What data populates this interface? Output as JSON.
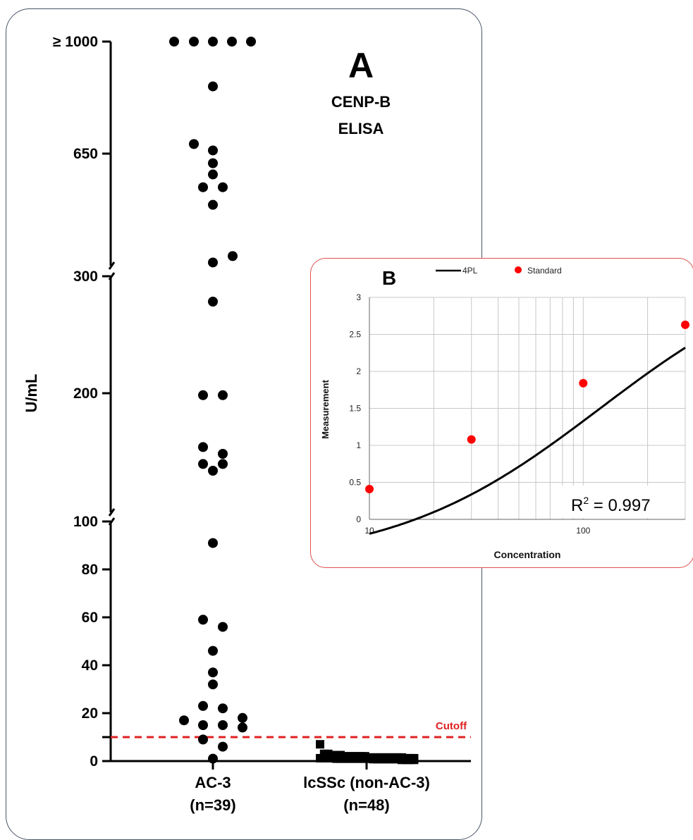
{
  "colors": {
    "dots": "#000000",
    "cutoff": "#e02020",
    "standard": "#ff0000",
    "curve": "#000000",
    "panelB_border": "#e05050",
    "panelA_border": "#4a5568"
  },
  "chart_data": [
    {
      "panel": "A",
      "type": "scatter",
      "panel_letter": "A",
      "title_lines": [
        "CENP-B",
        "ELISA"
      ],
      "ylabel": "U/mL",
      "yaxis_segments": [
        {
          "range": [
            0,
            100
          ],
          "ticks": [
            0,
            20,
            40,
            60,
            80,
            100
          ]
        },
        {
          "range": [
            100,
            300
          ],
          "ticks": [
            200,
            300
          ]
        },
        {
          "range": [
            300,
            1000
          ],
          "ticks": [
            650,
            1000
          ]
        }
      ],
      "y_tick_labels": [
        "0",
        "20",
        "40",
        "60",
        "80",
        "100",
        "200",
        "300",
        "650",
        "≥ 1000"
      ],
      "cutoff": {
        "value": 10,
        "label": "Cutoff"
      },
      "categories": [
        {
          "label": "AC-3",
          "n_label": "(n=39)"
        },
        {
          "label": "lcSSc (non-AC-3)",
          "n_label": "(n=48)"
        }
      ],
      "series": [
        {
          "category": "AC-3",
          "marker": "circle",
          "values": [
            1000,
            1000,
            1000,
            1000,
            1000,
            860,
            680,
            660,
            620,
            585,
            545,
            545,
            490,
            330,
            310,
            265,
            182,
            182,
            136,
            130,
            121,
            121,
            115,
            91,
            59,
            56,
            46,
            37,
            32,
            23,
            22,
            18,
            17,
            15,
            15,
            14,
            9,
            6,
            1
          ]
        },
        {
          "category": "lcSSc (non-AC-3)",
          "marker": "square",
          "values": [
            7,
            3,
            3,
            2.5,
            2.5,
            2.5,
            2,
            2,
            2,
            2,
            2,
            2,
            1.5,
            1.5,
            1.5,
            1.5,
            1.5,
            1.5,
            1.5,
            1.5,
            1.5,
            1.2,
            1.2,
            1.2,
            1.2,
            1.2,
            1.2,
            1.2,
            1,
            1,
            1,
            1,
            1,
            1,
            1,
            1,
            1,
            0.8,
            0.8,
            0.8,
            0.8,
            0.8,
            0.8,
            0.8,
            0.5,
            0.5,
            0.5,
            0.5
          ]
        }
      ]
    },
    {
      "panel": "B",
      "type": "line",
      "panel_letter": "B",
      "xlabel": "Concentration",
      "ylabel": "Measurement",
      "xscale": "log",
      "xlim": [
        10,
        300
      ],
      "ylim": [
        0,
        3
      ],
      "x_tick_labels": [
        "10",
        "100"
      ],
      "y_ticks": [
        0,
        0.5,
        1,
        1.5,
        2,
        2.5,
        3
      ],
      "y_tick_labels": [
        "0",
        "0.5",
        "1",
        "1.5",
        "2",
        "2.5",
        "3"
      ],
      "grid": true,
      "legend": [
        {
          "label": "4PL",
          "kind": "line"
        },
        {
          "label": "Standard",
          "kind": "point"
        }
      ],
      "annotation": {
        "text_base": "R",
        "text_sup": "2",
        "text_rest": " = 0.997"
      },
      "standard_points": {
        "x": [
          10,
          30,
          100,
          300
        ],
        "y": [
          0.41,
          1.08,
          1.84,
          2.63
        ]
      },
      "curve_4pl": {
        "A": -0.6,
        "B": 0.9,
        "C": 120,
        "D": 3.6
      }
    }
  ]
}
